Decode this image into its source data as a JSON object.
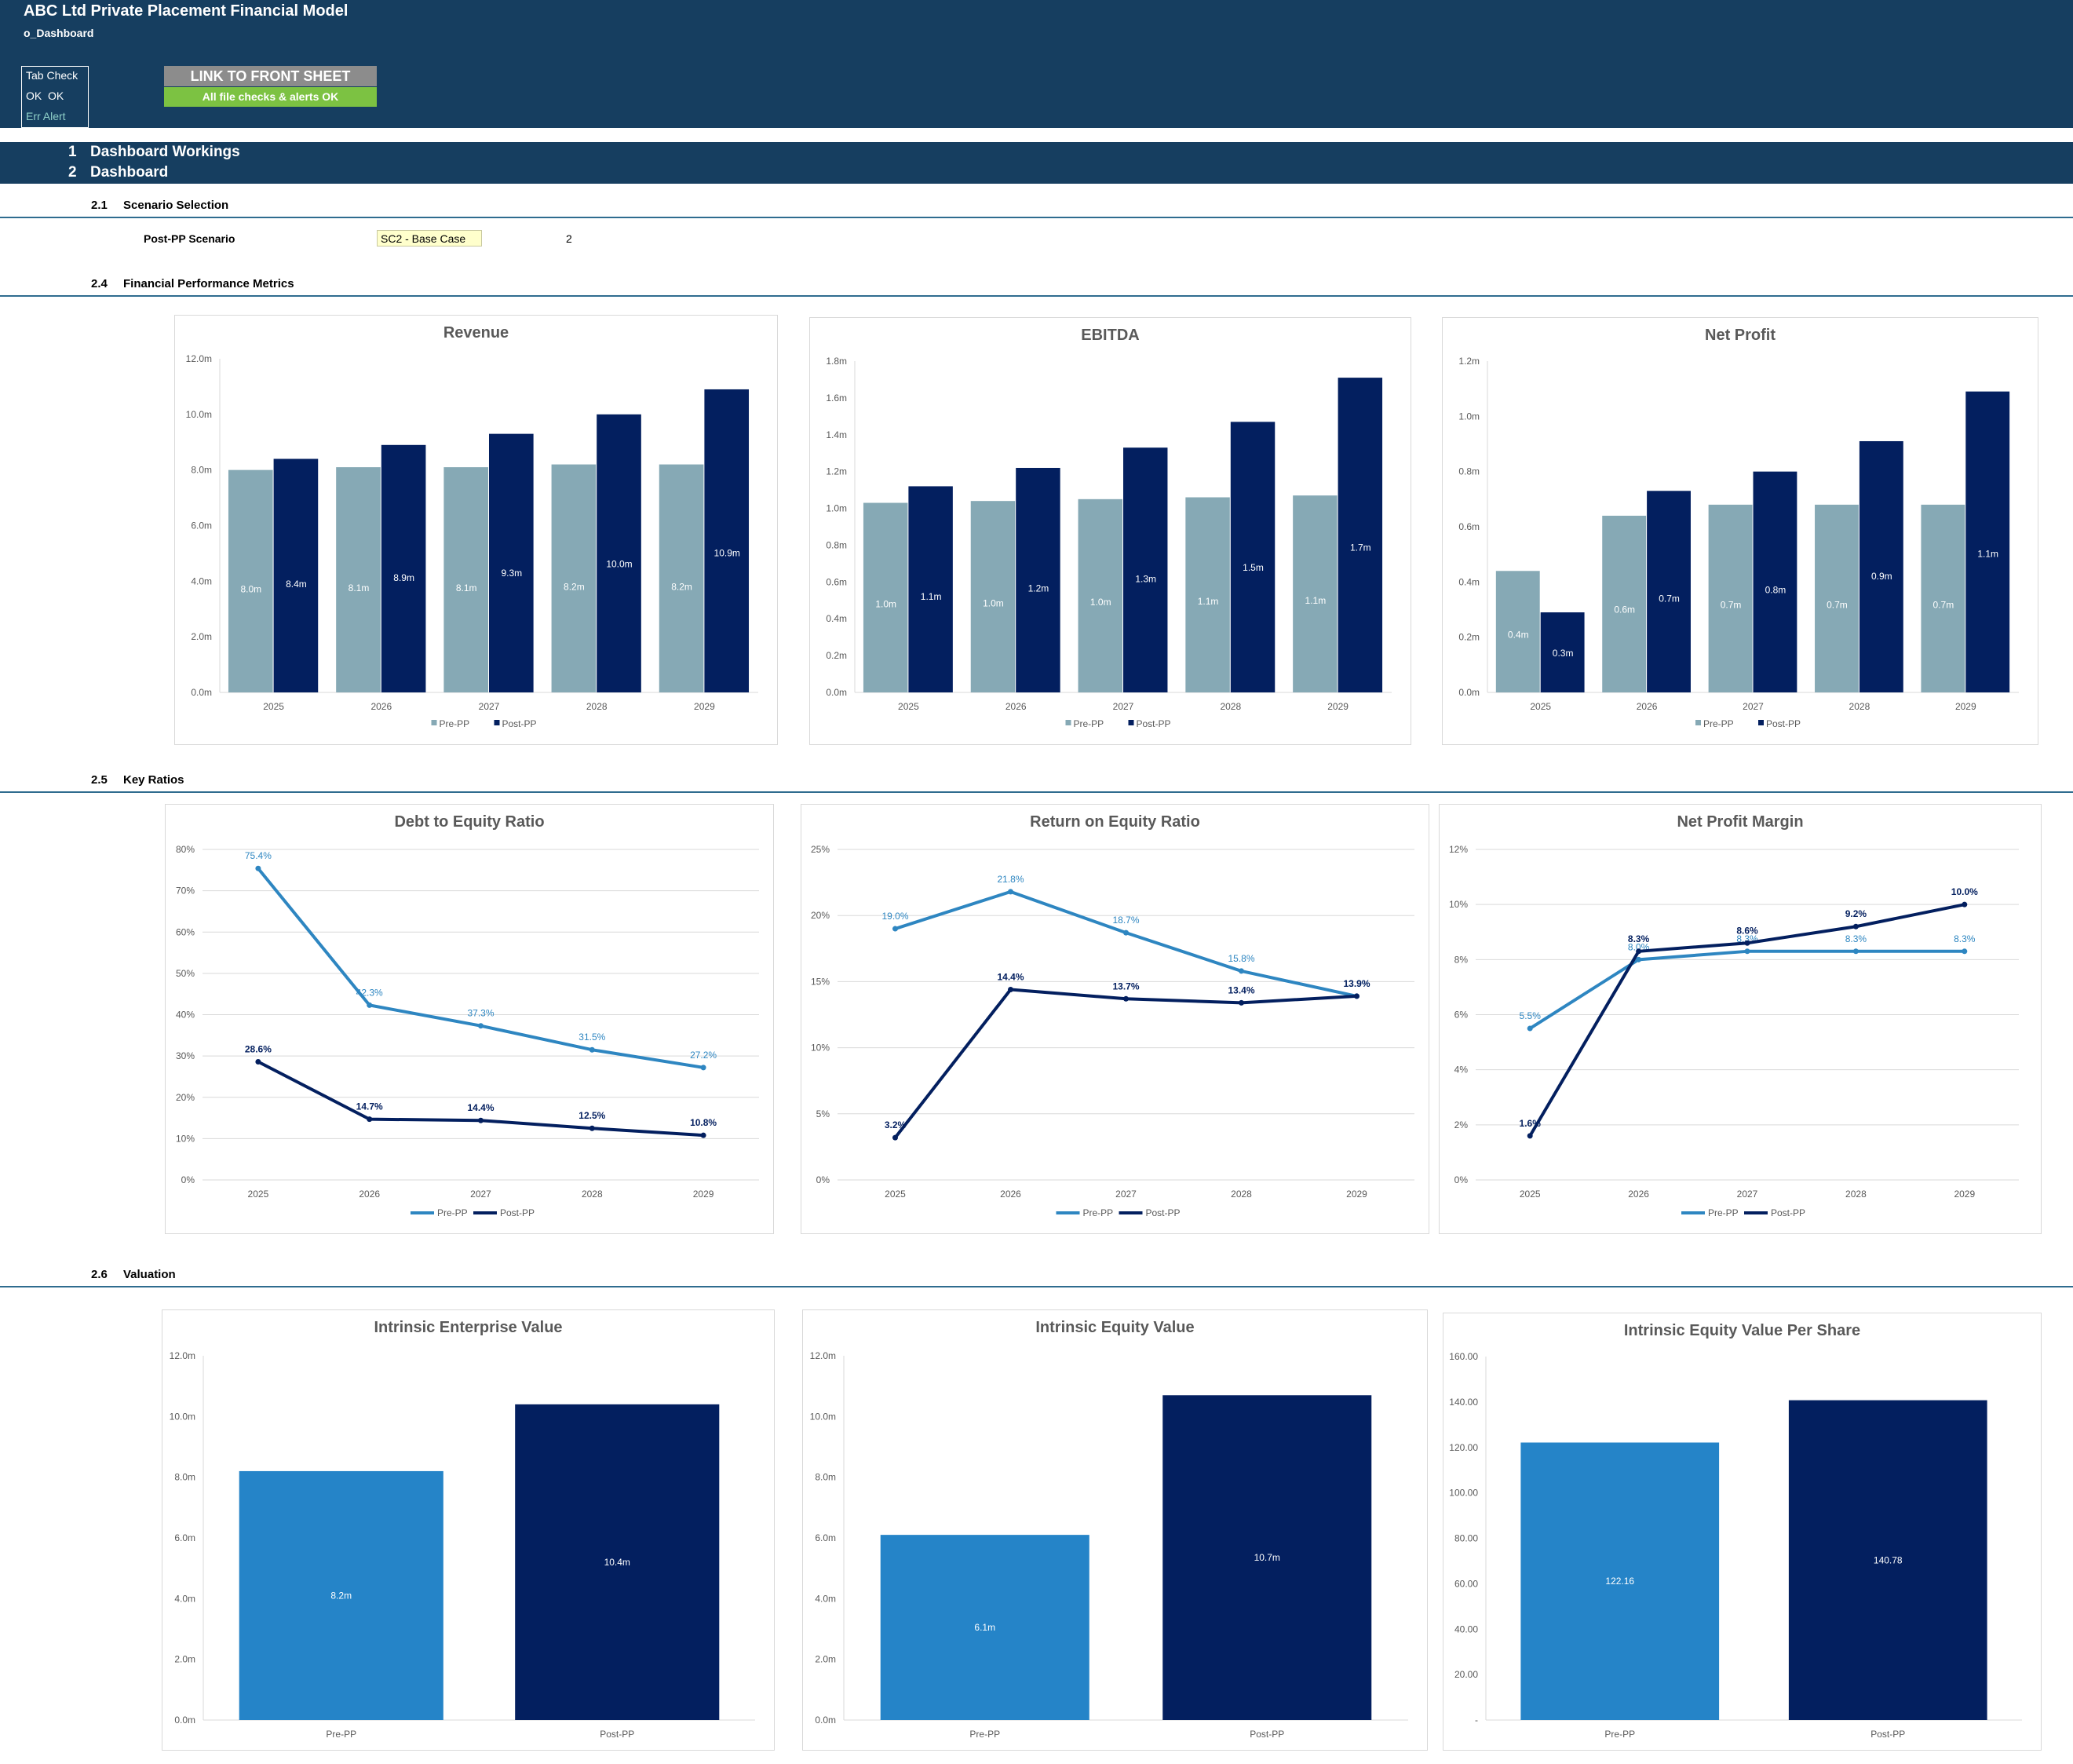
{
  "header": {
    "title": "ABC Ltd Private Placement Financial Model",
    "tab_name": "o_Dashboard",
    "tab_check_label": "Tab Check",
    "tab_check_values": "OK  OK",
    "err_alert_label": "Err Alert",
    "link_button_label": "LINK TO FRONT SHEET",
    "file_check_status": "All file checks & alerts OK"
  },
  "nav": [
    {
      "num": "1",
      "label": "Dashboard Workings"
    },
    {
      "num": "2",
      "label": "Dashboard"
    }
  ],
  "sections": {
    "scenario": {
      "num": "2.1",
      "title": "Scenario Selection"
    },
    "financial": {
      "num": "2.4",
      "title": "Financial Performance Metrics"
    },
    "ratios": {
      "num": "2.5",
      "title": "Key Ratios"
    },
    "valuation": {
      "num": "2.6",
      "title": "Valuation"
    }
  },
  "scenario": {
    "label": "Post-PP Scenario",
    "value": "SC2 - Base Case",
    "number": "2"
  },
  "colors": {
    "pre_bar": "#86a9b5",
    "post": "#031f5f",
    "pre_line": "#2e86c1",
    "val_pre": "#2584c8",
    "header": "#163e60",
    "ok_green": "#7cc242"
  },
  "chart_data": [
    {
      "id": "revenue",
      "type": "bar",
      "title": "Revenue",
      "categories": [
        "2025",
        "2026",
        "2027",
        "2028",
        "2029"
      ],
      "series": [
        {
          "name": "Pre-PP",
          "values": [
            8.0,
            8.1,
            8.1,
            8.2,
            8.2
          ],
          "labels": [
            "8.0m",
            "8.1m",
            "8.1m",
            "8.2m",
            "8.2m"
          ]
        },
        {
          "name": "Post-PP",
          "values": [
            8.4,
            8.9,
            9.3,
            10.0,
            10.9
          ],
          "labels": [
            "8.4m",
            "8.9m",
            "9.3m",
            "10.0m",
            "10.9m"
          ]
        }
      ],
      "ylim": [
        0,
        12
      ],
      "yticks": [
        "0.0m",
        "2.0m",
        "4.0m",
        "6.0m",
        "8.0m",
        "10.0m",
        "12.0m"
      ],
      "grid": false,
      "legend": "bottom"
    },
    {
      "id": "ebitda",
      "type": "bar",
      "title": "EBITDA",
      "categories": [
        "2025",
        "2026",
        "2027",
        "2028",
        "2029"
      ],
      "series": [
        {
          "name": "Pre-PP",
          "values": [
            1.03,
            1.04,
            1.05,
            1.06,
            1.07
          ],
          "labels": [
            "1.0m",
            "1.0m",
            "1.0m",
            "1.1m",
            "1.1m"
          ]
        },
        {
          "name": "Post-PP",
          "values": [
            1.12,
            1.22,
            1.33,
            1.47,
            1.71
          ],
          "labels": [
            "1.1m",
            "1.2m",
            "1.3m",
            "1.5m",
            "1.7m"
          ]
        }
      ],
      "ylim": [
        0,
        1.8
      ],
      "yticks": [
        "0.0m",
        "0.2m",
        "0.4m",
        "0.6m",
        "0.8m",
        "1.0m",
        "1.2m",
        "1.4m",
        "1.6m",
        "1.8m"
      ],
      "grid": false,
      "legend": "bottom"
    },
    {
      "id": "net-profit",
      "type": "bar",
      "title": "Net Profit",
      "categories": [
        "2025",
        "2026",
        "2027",
        "2028",
        "2029"
      ],
      "series": [
        {
          "name": "Pre-PP",
          "values": [
            0.44,
            0.64,
            0.68,
            0.68,
            0.68
          ],
          "labels": [
            "0.4m",
            "0.6m",
            "0.7m",
            "0.7m",
            "0.7m"
          ]
        },
        {
          "name": "Post-PP",
          "values": [
            0.29,
            0.73,
            0.8,
            0.91,
            1.09
          ],
          "labels": [
            "0.3m",
            "0.7m",
            "0.8m",
            "0.9m",
            "1.1m"
          ]
        }
      ],
      "ylim": [
        0,
        1.2
      ],
      "yticks": [
        "0.0m",
        "0.2m",
        "0.4m",
        "0.6m",
        "0.8m",
        "1.0m",
        "1.2m"
      ],
      "grid": false,
      "legend": "bottom"
    },
    {
      "id": "debt-equity",
      "type": "line",
      "title": "Debt to Equity Ratio",
      "categories": [
        "2025",
        "2026",
        "2027",
        "2028",
        "2029"
      ],
      "series": [
        {
          "name": "Pre-PP",
          "values": [
            75.4,
            42.3,
            37.3,
            31.5,
            27.2
          ],
          "labels": [
            "75.4%",
            "42.3%",
            "37.3%",
            "31.5%",
            "27.2%"
          ]
        },
        {
          "name": "Post-PP",
          "values": [
            28.6,
            14.7,
            14.4,
            12.5,
            10.8
          ],
          "labels": [
            "28.6%",
            "14.7%",
            "14.4%",
            "12.5%",
            "10.8%"
          ]
        }
      ],
      "ylim": [
        0,
        80
      ],
      "yticks": [
        "0%",
        "10%",
        "20%",
        "30%",
        "40%",
        "50%",
        "60%",
        "70%",
        "80%"
      ],
      "grid": true,
      "legend": "bottom"
    },
    {
      "id": "roe",
      "type": "line",
      "title": "Return on Equity Ratio",
      "categories": [
        "2025",
        "2026",
        "2027",
        "2028",
        "2029"
      ],
      "series": [
        {
          "name": "Pre-PP",
          "values": [
            19.0,
            21.8,
            18.7,
            15.8,
            13.9
          ],
          "labels": [
            "19.0%",
            "21.8%",
            "18.7%",
            "15.8%",
            "13.9%"
          ]
        },
        {
          "name": "Post-PP",
          "values": [
            3.2,
            14.4,
            13.7,
            13.4,
            13.9
          ],
          "labels": [
            "3.2%",
            "14.4%",
            "13.7%",
            "13.4%",
            "13.9%"
          ]
        }
      ],
      "ylim": [
        0,
        25
      ],
      "yticks": [
        "0%",
        "5%",
        "10%",
        "15%",
        "20%",
        "25%"
      ],
      "grid": true,
      "legend": "bottom"
    },
    {
      "id": "npm",
      "type": "line",
      "title": "Net Profit Margin",
      "categories": [
        "2025",
        "2026",
        "2027",
        "2028",
        "2029"
      ],
      "series": [
        {
          "name": "Pre-PP",
          "values": [
            5.5,
            8.0,
            8.3,
            8.3,
            8.3
          ],
          "labels": [
            "5.5%",
            "8.0%",
            "8.3%",
            "8.3%",
            "8.3%"
          ]
        },
        {
          "name": "Post-PP",
          "values": [
            1.6,
            8.3,
            8.6,
            9.2,
            10.0
          ],
          "labels": [
            "1.6%",
            "8.3%",
            "8.6%",
            "9.2%",
            "10.0%"
          ]
        }
      ],
      "ylim": [
        0,
        12
      ],
      "yticks": [
        "0%",
        "2%",
        "4%",
        "6%",
        "8%",
        "10%",
        "12%"
      ],
      "grid": true,
      "legend": "bottom"
    },
    {
      "id": "iev",
      "type": "bar",
      "title": "Intrinsic Enterprise Value",
      "categories": [
        "Pre-PP",
        "Post-PP"
      ],
      "values": [
        8.2,
        10.4
      ],
      "labels": [
        "8.2m",
        "10.4m"
      ],
      "ylim": [
        0,
        12
      ],
      "yticks": [
        "0.0m",
        "2.0m",
        "4.0m",
        "6.0m",
        "8.0m",
        "10.0m",
        "12.0m"
      ],
      "grid": false
    },
    {
      "id": "ieqv",
      "type": "bar",
      "title": "Intrinsic Equity Value",
      "categories": [
        "Pre-PP",
        "Post-PP"
      ],
      "values": [
        6.1,
        10.7
      ],
      "labels": [
        "6.1m",
        "10.7m"
      ],
      "ylim": [
        0,
        12
      ],
      "yticks": [
        "0.0m",
        "2.0m",
        "4.0m",
        "6.0m",
        "8.0m",
        "10.0m",
        "12.0m"
      ],
      "grid": false
    },
    {
      "id": "ieps",
      "type": "bar",
      "title": "Intrinsic Equity Value Per Share",
      "categories": [
        "Pre-PP",
        "Post-PP"
      ],
      "values": [
        122.16,
        140.78
      ],
      "labels": [
        "122.16",
        "140.78"
      ],
      "ylim": [
        0,
        160
      ],
      "yticks": [
        "-",
        "20.00",
        "40.00",
        "60.00",
        "80.00",
        "100.00",
        "120.00",
        "140.00",
        "160.00"
      ],
      "grid": false
    }
  ]
}
